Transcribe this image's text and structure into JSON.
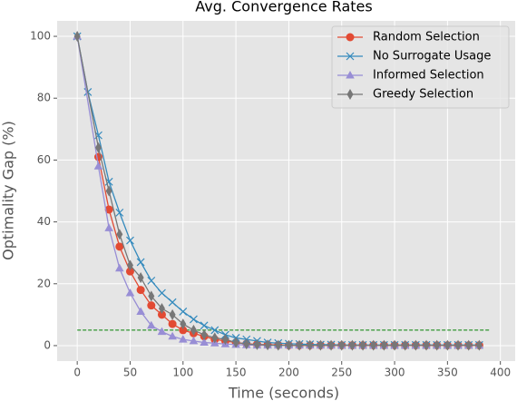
{
  "chart_data": {
    "type": "line",
    "title": "Avg. Convergence Rates",
    "xlabel": "Time (seconds)",
    "ylabel": "Optimality Gap (%)",
    "xlim": [
      -19,
      414
    ],
    "ylim": [
      -5,
      105
    ],
    "xticks": [
      0,
      50,
      100,
      150,
      200,
      250,
      300,
      350,
      400
    ],
    "yticks": [
      0,
      20,
      40,
      60,
      80,
      100
    ],
    "grid": true,
    "legend": "upper right",
    "series": [
      {
        "name": "Random Selection",
        "color": "#E24A33",
        "marker": "circle",
        "x": [
          20,
          30,
          40,
          50,
          60,
          70,
          80,
          90,
          100,
          110,
          120,
          130,
          140,
          150,
          160,
          170,
          180,
          190,
          200,
          210,
          220,
          230,
          240,
          250,
          260,
          270,
          280,
          290,
          300,
          310,
          320,
          330,
          340,
          350,
          360,
          370,
          380
        ],
        "values": [
          61,
          44,
          32,
          24,
          18,
          13,
          10,
          7,
          5,
          4,
          3,
          2,
          1.5,
          1,
          0.6,
          0.4,
          0.3,
          0.2,
          0.1,
          0.1,
          0.1,
          0.1,
          0.1,
          0.1,
          0.1,
          0.1,
          0.1,
          0.1,
          0.1,
          0.1,
          0.1,
          0.1,
          0.1,
          0.1,
          0.1,
          0.1,
          0.1
        ]
      },
      {
        "name": "No Surrogate Usage",
        "color": "#348ABD",
        "marker": "x",
        "x": [
          0,
          10,
          20,
          30,
          40,
          50,
          60,
          70,
          80,
          90,
          100,
          110,
          120,
          130,
          140,
          150,
          160,
          170,
          180,
          190,
          200,
          210,
          220,
          230,
          240,
          250,
          260,
          270,
          280,
          290,
          300,
          310,
          320,
          330,
          340,
          350,
          360,
          370,
          380
        ],
        "values": [
          100,
          82,
          68,
          53,
          43,
          34,
          27,
          21,
          17,
          14,
          11,
          8.5,
          6.5,
          5,
          3.5,
          2.5,
          2,
          1.5,
          1,
          0.8,
          0.6,
          0.5,
          0.4,
          0.3,
          0.3,
          0.2,
          0.2,
          0.2,
          0.2,
          0.2,
          0.2,
          0.2,
          0.2,
          0.2,
          0.2,
          0.2,
          0.2,
          0.2,
          0.2
        ]
      },
      {
        "name": "Informed Selection",
        "color": "#988ED5",
        "marker": "triangle",
        "x": [
          0,
          20,
          30,
          40,
          50,
          60,
          70,
          80,
          90,
          100,
          110,
          120,
          130,
          140,
          150,
          160,
          170,
          180,
          190,
          200,
          210,
          220,
          230,
          240,
          250,
          260,
          270,
          280,
          290,
          300,
          310,
          320,
          330,
          340,
          350,
          360,
          370,
          380
        ],
        "values": [
          100,
          58,
          38,
          25,
          17,
          11,
          6.5,
          4.5,
          3,
          2,
          1.5,
          1,
          0.8,
          0.5,
          0.3,
          0.2,
          0.1,
          0.1,
          0.1,
          0.1,
          0.1,
          0.1,
          0.1,
          0.1,
          0.1,
          0.1,
          0.1,
          0.1,
          0.1,
          0.1,
          0.1,
          0.1,
          0.1,
          0.1,
          0.1,
          0.1,
          0.1,
          0.1
        ]
      },
      {
        "name": "Greedy Selection",
        "color": "#777777",
        "marker": "diamond",
        "x": [
          0,
          20,
          30,
          40,
          50,
          60,
          70,
          80,
          90,
          100,
          110,
          120,
          130,
          140,
          150,
          160,
          170,
          180,
          190,
          200,
          210,
          220,
          230,
          240,
          250,
          260,
          270,
          280,
          290,
          300,
          310,
          320,
          330,
          340,
          350,
          360,
          370,
          380
        ],
        "values": [
          100,
          64,
          50,
          36,
          26,
          22,
          16,
          12,
          10,
          7,
          5,
          3.5,
          2.5,
          2,
          1,
          0.5,
          0.3,
          0.2,
          0.1,
          0.1,
          0.1,
          0.1,
          0.1,
          0.1,
          0.1,
          0.1,
          0.1,
          0.1,
          0.1,
          0.1,
          0.1,
          0.1,
          0.1,
          0.1,
          0.1,
          0.1,
          0.1,
          0.1
        ]
      }
    ],
    "reference_line": {
      "y": 5,
      "x": [
        0,
        390
      ],
      "color": "#008000"
    }
  }
}
